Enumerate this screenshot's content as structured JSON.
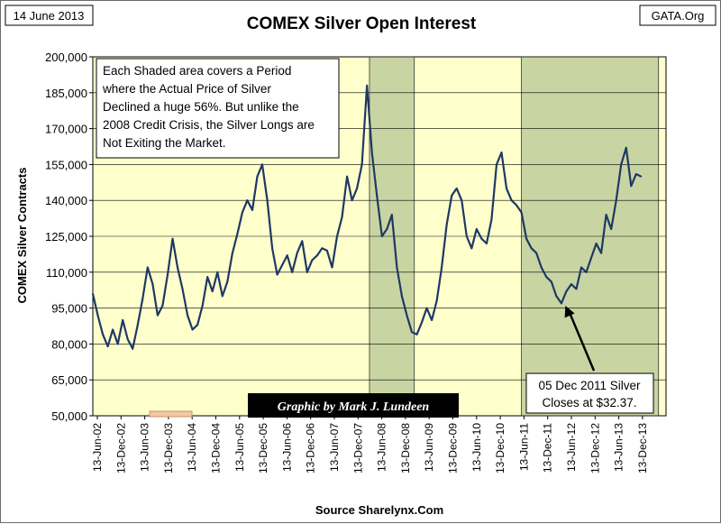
{
  "header": {
    "date_label": "14 June 2013",
    "source_site": "GATA.Org"
  },
  "chart_data": {
    "type": "line",
    "title": "COMEX Silver Open Interest",
    "xlabel": "Source Sharelynx.Com",
    "ylabel": "COMEX Silver Contracts",
    "ylim": [
      50000,
      200000
    ],
    "y_ticks": [
      {
        "value": 50000,
        "label": "50,000"
      },
      {
        "value": 65000,
        "label": "65,000"
      },
      {
        "value": 80000,
        "label": "80,000"
      },
      {
        "value": 95000,
        "label": "95,000"
      },
      {
        "value": 110000,
        "label": "110,000"
      },
      {
        "value": 125000,
        "label": "125,000"
      },
      {
        "value": 140000,
        "label": "140,000"
      },
      {
        "value": 155000,
        "label": "155,000"
      },
      {
        "value": 170000,
        "label": "170,000"
      },
      {
        "value": 185000,
        "label": "185,000"
      },
      {
        "value": 200000,
        "label": "200,000"
      }
    ],
    "x_ticks": [
      "13-Jun-02",
      "13-Dec-02",
      "13-Jun-03",
      "13-Dec-03",
      "13-Jun-04",
      "13-Dec-04",
      "13-Jun-05",
      "13-Dec-05",
      "13-Jun-06",
      "13-Dec-06",
      "13-Jun-07",
      "13-Dec-07",
      "13-Jun-08",
      "13-Dec-08",
      "13-Jun-09",
      "13-Dec-09",
      "13-Jun-10",
      "13-Dec-10",
      "13-Jun-11",
      "13-Dec-11",
      "13-Jun-12",
      "13-Dec-12",
      "13-Jun-13",
      "13-Dec-13"
    ],
    "x_range": [
      2002.45,
      2013.95
    ],
    "shaded_periods": [
      {
        "name": "2008 Credit Crisis",
        "start": 2008.0,
        "end": 2008.9,
        "color": "#c8d5a2"
      },
      {
        "name": "2011-2013 Silver Decline",
        "start": 2011.05,
        "end": 2013.8,
        "color": "#c8d5a2"
      }
    ],
    "series": [
      {
        "name": "COMEX Silver Open Interest",
        "color": "#1f3864",
        "x": [
          2002.45,
          2002.55,
          2002.65,
          2002.75,
          2002.85,
          2002.95,
          2003.05,
          2003.15,
          2003.25,
          2003.35,
          2003.45,
          2003.55,
          2003.65,
          2003.75,
          2003.85,
          2003.95,
          2004.05,
          2004.15,
          2004.25,
          2004.35,
          2004.45,
          2004.55,
          2004.65,
          2004.75,
          2004.85,
          2004.95,
          2005.05,
          2005.15,
          2005.25,
          2005.35,
          2005.45,
          2005.55,
          2005.65,
          2005.75,
          2005.85,
          2005.95,
          2006.05,
          2006.15,
          2006.25,
          2006.35,
          2006.45,
          2006.55,
          2006.65,
          2006.75,
          2006.85,
          2006.95,
          2007.05,
          2007.15,
          2007.25,
          2007.35,
          2007.45,
          2007.55,
          2007.65,
          2007.75,
          2007.85,
          2007.95,
          2008.05,
          2008.15,
          2008.25,
          2008.35,
          2008.45,
          2008.55,
          2008.65,
          2008.75,
          2008.85,
          2008.95,
          2009.05,
          2009.15,
          2009.25,
          2009.35,
          2009.45,
          2009.55,
          2009.65,
          2009.75,
          2009.85,
          2009.95,
          2010.05,
          2010.15,
          2010.25,
          2010.35,
          2010.45,
          2010.55,
          2010.65,
          2010.75,
          2010.85,
          2010.95,
          2011.05,
          2011.15,
          2011.25,
          2011.35,
          2011.45,
          2011.55,
          2011.65,
          2011.75,
          2011.85,
          2011.95,
          2012.05,
          2012.15,
          2012.25,
          2012.35,
          2012.45,
          2012.55,
          2012.65,
          2012.75,
          2012.85,
          2012.95,
          2013.05,
          2013.15,
          2013.25,
          2013.35,
          2013.45
        ],
        "values": [
          101000,
          92000,
          84000,
          79000,
          86000,
          80000,
          90000,
          82000,
          78000,
          88000,
          99000,
          112000,
          105000,
          92000,
          96000,
          109000,
          124000,
          112000,
          103000,
          92000,
          86000,
          88000,
          96000,
          108000,
          102000,
          110000,
          100000,
          106000,
          118000,
          126000,
          135000,
          140000,
          136000,
          150000,
          155000,
          140000,
          120000,
          109000,
          113000,
          117000,
          110000,
          118000,
          123000,
          110000,
          115000,
          117000,
          120000,
          119000,
          112000,
          125000,
          133000,
          150000,
          140000,
          145000,
          155000,
          188000,
          160000,
          142000,
          125000,
          128000,
          134000,
          112000,
          100000,
          92000,
          85000,
          84000,
          89000,
          95000,
          90000,
          98000,
          112000,
          130000,
          142000,
          145000,
          140000,
          125000,
          120000,
          128000,
          124000,
          122000,
          132000,
          155000,
          160000,
          145000,
          140000,
          138000,
          135000,
          124000,
          120000,
          118000,
          112000,
          108000,
          106000,
          100000,
          97000,
          102000,
          105000,
          103000,
          112000,
          110000,
          116000,
          122000,
          118000,
          134000,
          128000,
          140000,
          155000,
          162000,
          146000,
          151000,
          150000
        ]
      }
    ]
  },
  "annotations": {
    "top_note": {
      "lines": [
        "Each Shaded area covers a Period",
        "where the Actual Price of Silver",
        "Declined a huge 56%.  But unlike the",
        "2008 Credit Crisis, the Silver Longs are",
        "Not Exiting the Market."
      ]
    },
    "dec_2011_note": {
      "lines": [
        "05 Dec 2011 Silver",
        "Closes at $32.37."
      ],
      "target_x": 2011.93,
      "target_value": 96000
    },
    "credit": "Graphic by Mark J. Lundeen"
  },
  "colors": {
    "plot_background": "#ffffcc",
    "shaded_period": "#c8d5a2",
    "line": "#1f3864",
    "credit_bg": "#000000",
    "credit_text": "#ffffff"
  }
}
